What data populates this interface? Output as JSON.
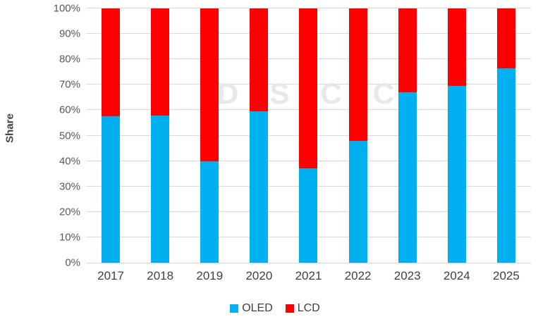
{
  "watermark": "DSCC",
  "chart_data": {
    "type": "bar",
    "subtype": "stacked-100-percent",
    "title": "",
    "xlabel": "",
    "ylabel": "Share",
    "ylim": [
      0,
      100
    ],
    "grid": true,
    "legend_position": "bottom",
    "categories": [
      "2017",
      "2018",
      "2019",
      "2020",
      "2021",
      "2022",
      "2023",
      "2024",
      "2025"
    ],
    "series": [
      {
        "name": "OLED",
        "color": "#00B0F0",
        "values": [
          57.5,
          58,
          40,
          59.5,
          37,
          48,
          67,
          69.5,
          76.5
        ]
      },
      {
        "name": "LCD",
        "color": "#FF0000",
        "values": [
          42.5,
          42,
          60,
          40.5,
          63,
          52,
          33,
          30.5,
          23.5
        ]
      }
    ],
    "yticks": [
      {
        "label": "0%",
        "value": 0
      },
      {
        "label": "10%",
        "value": 10
      },
      {
        "label": "20%",
        "value": 20
      },
      {
        "label": "30%",
        "value": 30
      },
      {
        "label": "40%",
        "value": 40
      },
      {
        "label": "50%",
        "value": 50
      },
      {
        "label": "60%",
        "value": 60
      },
      {
        "label": "70%",
        "value": 70
      },
      {
        "label": "80%",
        "value": 80
      },
      {
        "label": "90%",
        "value": 90
      },
      {
        "label": "100%",
        "value": 100
      }
    ]
  }
}
